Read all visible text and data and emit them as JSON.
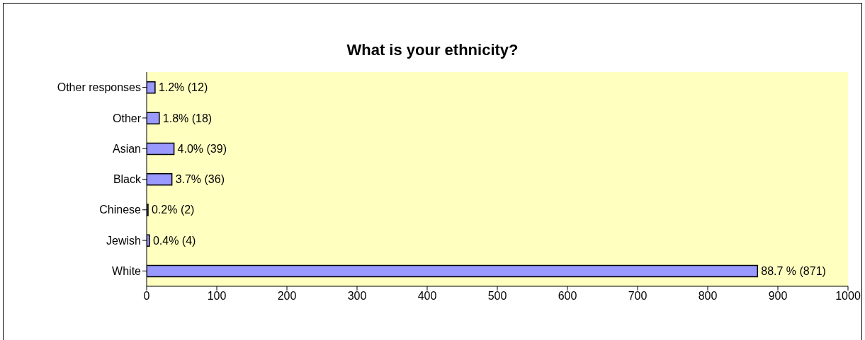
{
  "chart_data": {
    "type": "bar",
    "orientation": "horizontal",
    "title": "What is your ethnicity?",
    "categories": [
      "Other responses",
      "Other",
      "Asian",
      "Black",
      "Chinese",
      "Jewish",
      "White"
    ],
    "values": [
      12,
      18,
      39,
      36,
      2,
      4,
      871
    ],
    "value_labels": [
      "1.2% (12)",
      "1.8% (18)",
      "4.0% (39)",
      "3.7% (36)",
      "0.2% (2)",
      "0.4% (4)",
      "88.7 % (871)"
    ],
    "color": "#9999ff",
    "xlim": [
      0,
      1000
    ],
    "xticks": [
      0,
      100,
      200,
      300,
      400,
      500,
      600,
      700,
      800,
      900,
      1000
    ],
    "grid": false
  }
}
